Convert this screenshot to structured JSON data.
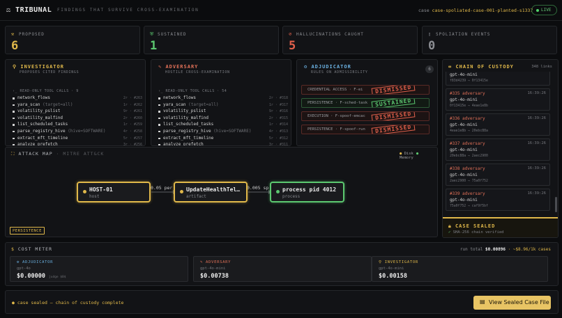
{
  "header": {
    "logo": "TRIBUNAL",
    "tagline": "FINDINGS THAT SURVIVE CROSS-EXAMINATION",
    "case_label": "case",
    "case_id": "case-spoliated-case-001-planted-s1337",
    "live": "LIVE"
  },
  "stats": [
    {
      "icon": "gavel-icon",
      "glyph": "⚒",
      "label": "PROPOSED",
      "value": "6",
      "color": "#e0b84a"
    },
    {
      "icon": "shield-check-icon",
      "glyph": "⛨",
      "label": "SUSTAINED",
      "value": "1",
      "color": "#5cc870"
    },
    {
      "icon": "no-entry-icon",
      "glyph": "⊘",
      "label": "HALLUCINATIONS CAUGHT",
      "value": "5",
      "color": "#e2604b"
    },
    {
      "icon": "file-icon",
      "glyph": "▯",
      "label": "SPOLIATION EVENTS",
      "value": "0",
      "color": "#8c8e93"
    }
  ],
  "investigator": {
    "title": "INVESTIGATOR",
    "subtitle": "PROPOSES CITED FINDINGS",
    "calls_label": "READ-ONLY TOOL CALLS · 9",
    "tools": [
      {
        "name": "network_flows",
        "arg": "",
        "meta": "2r · #263"
      },
      {
        "name": "yara_scan",
        "arg": "(target=all)",
        "meta": "1r · #262"
      },
      {
        "name": "volatility_pslist",
        "arg": "",
        "meta": "9r · #261"
      },
      {
        "name": "volatility_malfind",
        "arg": "",
        "meta": "2r · #260"
      },
      {
        "name": "list_scheduled_tasks",
        "arg": "",
        "meta": "1r · #259"
      },
      {
        "name": "parse_registry_hive",
        "arg": "(hive=SOFTWARE)",
        "meta": "4r · #258"
      },
      {
        "name": "extract_mft_timeline",
        "arg": "",
        "meta": "5r · #257"
      },
      {
        "name": "analyze_prefetch",
        "arg": "",
        "meta": "3r · #256"
      }
    ]
  },
  "adversary": {
    "title": "ADVERSARY",
    "subtitle": "HOSTILE CROSS-EXAMINATION",
    "calls_label": "READ-ONLY TOOL CALLS · 54",
    "tools": [
      {
        "name": "network_flows",
        "arg": "",
        "meta": "2r · #318"
      },
      {
        "name": "yara_scan",
        "arg": "(target=all)",
        "meta": "1r · #317"
      },
      {
        "name": "volatility_pslist",
        "arg": "",
        "meta": "9r · #316"
      },
      {
        "name": "volatility_malfind",
        "arg": "",
        "meta": "2r · #315"
      },
      {
        "name": "list_scheduled_tasks",
        "arg": "",
        "meta": "1r · #314"
      },
      {
        "name": "parse_registry_hive",
        "arg": "(hive=SOFTWARE)",
        "meta": "4r · #313"
      },
      {
        "name": "extract_mft_timeline",
        "arg": "",
        "meta": "5r · #312"
      },
      {
        "name": "analyze_prefetch",
        "arg": "",
        "meta": "3r · #311"
      }
    ]
  },
  "adjudicator": {
    "title": "ADJUDICATOR",
    "subtitle": "RULES ON ADMISSIBILITY",
    "count": "6",
    "rules": [
      {
        "label": "CREDENTIAL ACCESS · F-ei",
        "stamp": "DISMISSED",
        "status": "dismissed"
      },
      {
        "label": "PERSISTENCE · F-sched-task",
        "stamp": "SUSTAINED",
        "status": "sustained"
      },
      {
        "label": "EXECUTION · F-spoof-emcac",
        "stamp": "DISMISSED",
        "status": "dismissed"
      },
      {
        "label": "PERSISTENCE · F-spoof-run",
        "stamp": "DISMISSED",
        "status": "dismissed"
      }
    ]
  },
  "attack_map": {
    "title": "ATTACK MAP",
    "subtitle": "· MITRE ATT&CK",
    "legend": [
      {
        "label": "Disk",
        "color": "#e0b84a"
      },
      {
        "label": "Memory",
        "color": "#5cc870"
      }
    ],
    "nodes": [
      {
        "title": "HOST-01",
        "sub": "host",
        "color": "#e0b84a"
      },
      {
        "title": "UpdateHealthTel…",
        "sub": "artifact",
        "color": "#e0b84a"
      },
      {
        "title": "process pid 4012",
        "sub": "process",
        "color": "#5cc870"
      }
    ],
    "edges": [
      "0.05 persi",
      "0.005 sp"
    ],
    "badge": "PERSISTENCE"
  },
  "custody": {
    "title": "CHAIN OF CUSTODY",
    "count": "348 links",
    "top": {
      "model": "gpt-4o-mini",
      "hash": "f83d4239 → 0f13415e"
    },
    "entries": [
      {
        "role": "#335 adversary",
        "time": "16:39:26",
        "model": "gpt-4o-mini",
        "hash": "0f13415e → 4eae1e8b"
      },
      {
        "role": "#336 adversary",
        "time": "16:39:26",
        "model": "gpt-4o-mini",
        "hash": "4eae1e8b → 20ebc88a"
      },
      {
        "role": "#337 adversary",
        "time": "16:39:26",
        "model": "gpt-4o-mini",
        "hash": "20ebc88a → 2aec2900"
      },
      {
        "role": "#338 adversary",
        "time": "16:39:26",
        "model": "gpt-4o-mini",
        "hash": "2aec2900 → 75a0f752"
      },
      {
        "role": "#339 adversary",
        "time": "16:39:26",
        "model": "gpt-4o-mini",
        "hash": "75a0f752 → caf9f5bf"
      }
    ],
    "sealed_title": "CASE SEALED",
    "sealed_sub": "SHA-256 chain verified"
  },
  "cost": {
    "title": "COST METER",
    "run_label": "run total",
    "run_total": "$0.00896",
    "delta": "· ~$8.96/1k cases",
    "cards": [
      {
        "role": "ADJUDICATOR",
        "model": "gpt-4o",
        "value": "$0.00000",
        "note": "judge $0$",
        "color": "#6ab0e0"
      },
      {
        "role": "ADVERSARY",
        "model": "gpt-4o-mini",
        "value": "$0.00738",
        "note": "",
        "color": "#e27158"
      },
      {
        "role": "INVESTIGATOR",
        "model": "gpt-4o-mini",
        "value": "$0.00158",
        "note": "",
        "color": "#e0b84a"
      }
    ]
  },
  "footer": {
    "status": "case sealed — chain of custody complete",
    "button": "View Sealed Case File"
  }
}
